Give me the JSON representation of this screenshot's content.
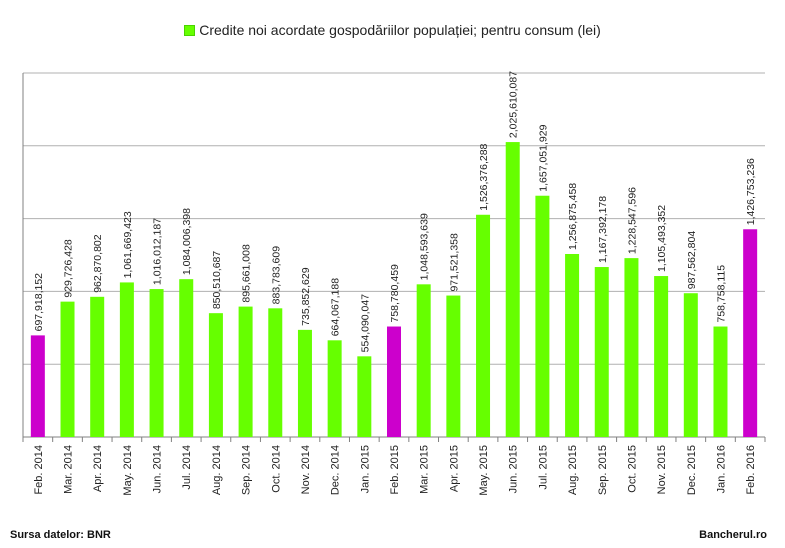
{
  "chart_data": {
    "type": "bar",
    "legend": "Credite noi acordate gospodăriilor populației; pentru consum (lei)",
    "legend_position": "top",
    "grid": true,
    "ylim": [
      0,
      2500000000
    ],
    "categories": [
      "Feb. 2014",
      "Mar. 2014",
      "Apr. 2014",
      "May. 2014",
      "Jun. 2014",
      "Jul. 2014",
      "Aug. 2014",
      "Sep. 2014",
      "Oct. 2014",
      "Nov. 2014",
      "Dec. 2014",
      "Jan. 2015",
      "Feb. 2015",
      "Mar. 2015",
      "Apr. 2015",
      "May. 2015",
      "Jun. 2015",
      "Jul. 2015",
      "Aug. 2015",
      "Sep. 2015",
      "Oct. 2015",
      "Nov. 2015",
      "Dec. 2015",
      "Jan. 2016",
      "Feb. 2016"
    ],
    "values": [
      697918152,
      929726428,
      962870802,
      1061669423,
      1016012187,
      1084006398,
      850510687,
      895661008,
      883783609,
      735852629,
      664067188,
      554090047,
      758780459,
      1048593639,
      971521358,
      1526376288,
      2025610087,
      1657051929,
      1256875458,
      1167392178,
      1228547596,
      1105493352,
      987562804,
      758758115,
      1426753236
    ],
    "value_labels": [
      "697,918,152",
      "929,726,428",
      "962,870,802",
      "1,061,669,423",
      "1,016,012,187",
      "1,084,006,398",
      "850,510,687",
      "895,661,008",
      "883,783,609",
      "735,852,629",
      "664,067,188",
      "554,090,047",
      "758,780,459",
      "1,048,593,639",
      "971,521,358",
      "1,526,376,288",
      "2,025,610,087",
      "1,657,051,929",
      "1,256,875,458",
      "1,167,392,178",
      "1,228,547,596",
      "1,105,493,352",
      "987,562,804",
      "758,758,115",
      "1,426,753,236"
    ],
    "highlight_categories": [
      "Feb. 2014",
      "Feb. 2015",
      "Feb. 2016"
    ],
    "colors": {
      "bar": "#66ff00",
      "highlight": "#cc00cc",
      "grid": "#b0b0b0"
    }
  },
  "footer": {
    "source": "Sursa datelor: BNR",
    "brand": "Bancherul.ro"
  }
}
